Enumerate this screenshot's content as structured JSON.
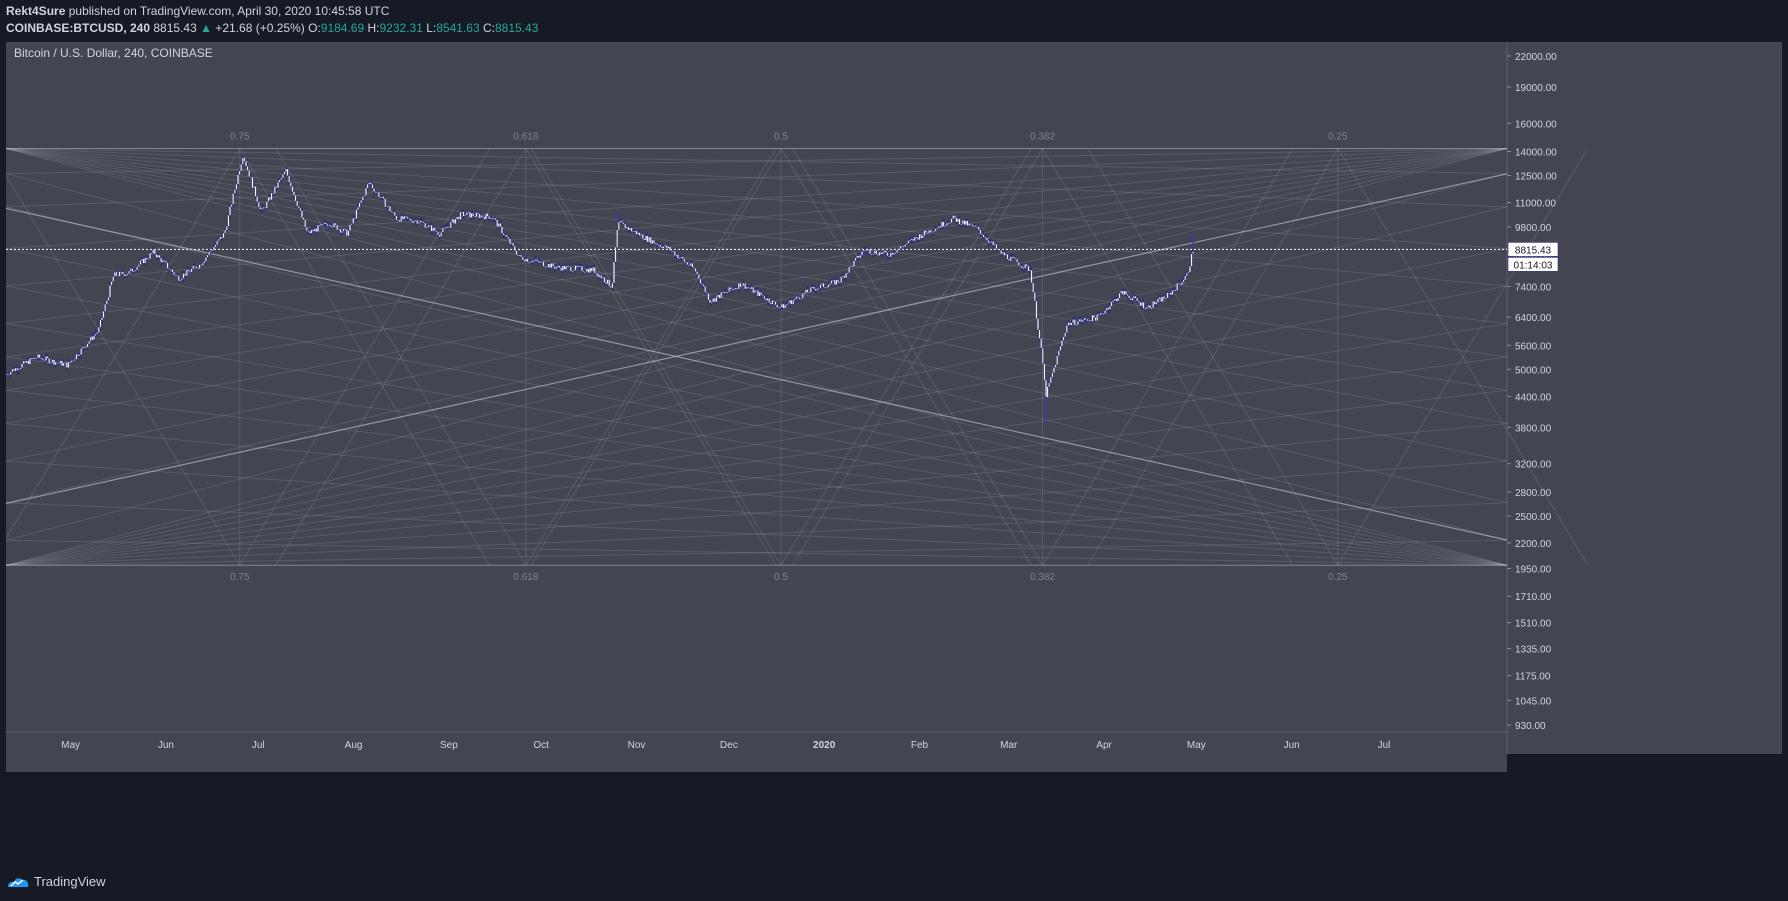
{
  "header": {
    "author": "Rekt4Sure",
    "published_text": "published on TradingView.com, April 30, 2020 10:45:58 UTC",
    "symbol": "COINBASE:BTCUSD, 240",
    "last": "8815.43",
    "change": "+21.68 (+0.25%)",
    "o_label": "O:",
    "o_value": "9184.69",
    "h_label": "H:",
    "h_value": "9232.31",
    "l_label": "L:",
    "l_value": "8541.63",
    "c_label": "C:",
    "c_value": "8815.43"
  },
  "footer": {
    "brand": "TradingView",
    "logo_icon": "tradingview-logo-icon"
  },
  "colors": {
    "background": "#161a25",
    "pane": "#434651",
    "candle": "#ffffff",
    "candle_outline": "#2a2b7a",
    "price_up": "#26a69a"
  },
  "chart_data": {
    "type": "candlestick",
    "title": "Bitcoin / U.S. Dollar, 240, COINBASE",
    "y_scale": "log",
    "ylim": [
      900,
      23500
    ],
    "y_ticks": [
      "22000.00",
      "19000.00",
      "16000.00",
      "14000.00",
      "12500.00",
      "11000.00",
      "9800.00",
      "8600.00",
      "7400.00",
      "6400.00",
      "5600.00",
      "5000.00",
      "4400.00",
      "3800.00",
      "3200.00",
      "2800.00",
      "2500.00",
      "2200.00",
      "1950.00",
      "1710.00",
      "1510.00",
      "1335.00",
      "1175.00",
      "1045.00",
      "930.00"
    ],
    "x_ticks": [
      "May",
      "Jun",
      "Jul",
      "Aug",
      "Sep",
      "Oct",
      "Nov",
      "Dec",
      "2020",
      "Feb",
      "Mar",
      "Apr",
      "May",
      "Jun",
      "Jul"
    ],
    "x_range": [
      "2019-04-10",
      "2020-08-10"
    ],
    "last_price_label": "8815.43",
    "countdown_label": "01:14:03",
    "fib_labels": [
      "0.75",
      "0.618",
      "0.5",
      "0.382",
      "0.25"
    ],
    "fib_box": {
      "top_price": 14200,
      "bottom_price": 1980,
      "level_dates": [
        "2019-06-25",
        "2019-09-26",
        "2019-12-18",
        "2020-03-12",
        "2020-06-16"
      ]
    },
    "price_path": [
      [
        "2019-04-10",
        4900
      ],
      [
        "2019-04-20",
        5300
      ],
      [
        "2019-04-30",
        5100
      ],
      [
        "2019-05-10",
        6000
      ],
      [
        "2019-05-15",
        7800
      ],
      [
        "2019-05-20",
        7900
      ],
      [
        "2019-05-28",
        8700
      ],
      [
        "2019-06-05",
        7700
      ],
      [
        "2019-06-12",
        8200
      ],
      [
        "2019-06-20",
        9500
      ],
      [
        "2019-06-26",
        13800
      ],
      [
        "2019-07-02",
        10500
      ],
      [
        "2019-07-10",
        12800
      ],
      [
        "2019-07-17",
        9500
      ],
      [
        "2019-07-24",
        10000
      ],
      [
        "2019-07-30",
        9500
      ],
      [
        "2019-08-06",
        12100
      ],
      [
        "2019-08-15",
        10200
      ],
      [
        "2019-08-22",
        10100
      ],
      [
        "2019-08-29",
        9500
      ],
      [
        "2019-09-05",
        10400
      ],
      [
        "2019-09-15",
        10300
      ],
      [
        "2019-09-24",
        8500
      ],
      [
        "2019-10-06",
        8100
      ],
      [
        "2019-10-18",
        8000
      ],
      [
        "2019-10-24",
        7400
      ],
      [
        "2019-10-26",
        10000
      ],
      [
        "2019-11-04",
        9300
      ],
      [
        "2019-11-12",
        8800
      ],
      [
        "2019-11-20",
        8000
      ],
      [
        "2019-11-25",
        6900
      ],
      [
        "2019-12-05",
        7500
      ],
      [
        "2019-12-18",
        6700
      ],
      [
        "2019-12-28",
        7300
      ],
      [
        "2020-01-06",
        7600
      ],
      [
        "2020-01-14",
        8800
      ],
      [
        "2020-01-22",
        8600
      ],
      [
        "2020-02-01",
        9400
      ],
      [
        "2020-02-12",
        10200
      ],
      [
        "2020-02-20",
        9700
      ],
      [
        "2020-02-27",
        8700
      ],
      [
        "2020-03-08",
        8000
      ],
      [
        "2020-03-12",
        5200
      ],
      [
        "2020-03-13",
        4400
      ],
      [
        "2020-03-20",
        6200
      ],
      [
        "2020-03-30",
        6400
      ],
      [
        "2020-04-07",
        7200
      ],
      [
        "2020-04-15",
        6700
      ],
      [
        "2020-04-22",
        7100
      ],
      [
        "2020-04-28",
        7800
      ],
      [
        "2020-04-30",
        8815
      ]
    ],
    "extremes": [
      [
        "2019-06-26",
        13880
      ],
      [
        "2019-10-26",
        10540
      ],
      [
        "2020-03-13",
        3860
      ],
      [
        "2020-04-30",
        9460
      ]
    ]
  }
}
